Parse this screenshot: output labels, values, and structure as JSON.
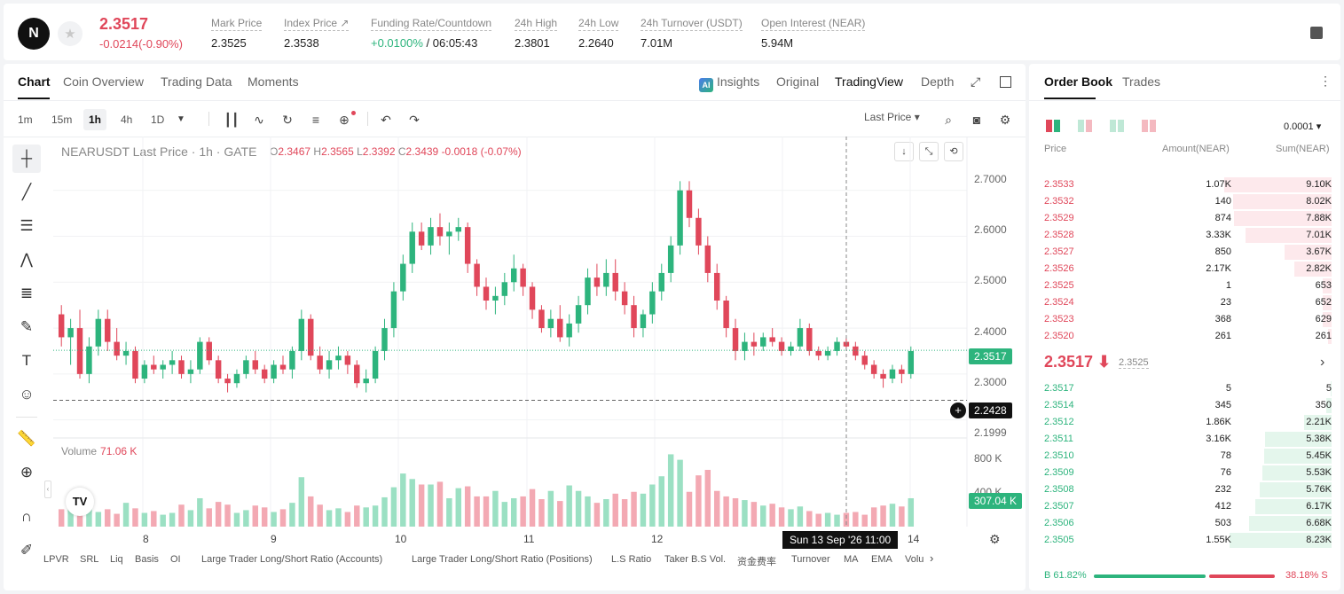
{
  "ticker": {
    "logo": "N",
    "last_price": "2.3517",
    "change": "-0.0214(-0.90%)",
    "stats": [
      {
        "label": "Mark Price",
        "value": "2.3525"
      },
      {
        "label": "Index Price ↗",
        "value": "2.3538"
      },
      {
        "label": "Funding Rate/Countdown",
        "value_green": "+0.0100%",
        "value": " / 06:05:43"
      },
      {
        "label": "24h High",
        "value": "2.3801"
      },
      {
        "label": "24h Low",
        "value": "2.2640"
      },
      {
        "label": "24h Turnover (USDT)",
        "value": "7.01M"
      },
      {
        "label": "Open Interest (NEAR)",
        "value": "5.94M"
      }
    ]
  },
  "chart_tabs": [
    "Chart",
    "Coin Overview",
    "Trading Data",
    "Moments"
  ],
  "view_tabs": {
    "insights": "Insights",
    "original": "Original",
    "tradingview": "TradingView",
    "depth": "Depth"
  },
  "timeframes": [
    "1m",
    "15m",
    "1h",
    "4h",
    "1D"
  ],
  "last_price_select": "Last Price ▾",
  "chart_header": {
    "title": "NEARUSDT Last Price · 1h · GATE",
    "o": "2.3467",
    "h": "2.3565",
    "l": "2.3392",
    "c": "2.3439",
    "chg": "-0.0018 (-0.07%)"
  },
  "price_axis": [
    "2.7000",
    "2.6000",
    "2.5000",
    "2.4000",
    "2.3000",
    "2.1999"
  ],
  "price_tags": {
    "last": "2.3517",
    "crosshair": "2.2428"
  },
  "volume": {
    "label": "Volume",
    "value": "71.06 K",
    "axis": [
      "800 K",
      "400 K"
    ],
    "tag": "307.04 K"
  },
  "x_axis": [
    "8",
    "9",
    "10",
    "11",
    "12",
    "14"
  ],
  "crosshair_time": "Sun 13 Sep '26   11:00",
  "indicators": [
    "LPVR",
    "SRL",
    "Liq",
    "Basis",
    "OI",
    "Large Trader Long/Short Ratio (Accounts)",
    "Large Trader Long/Short Ratio (Positions)",
    "L.S Ratio",
    "Taker B.S Vol.",
    "资金费率",
    "Turnover",
    "MA",
    "EMA",
    "Volu"
  ],
  "chart_data": {
    "type": "candlestick",
    "title": "NEARUSDT Last Price · 1h · GATE",
    "ylim": [
      2.18,
      2.74
    ],
    "ohlc": [
      [
        2.43,
        2.45,
        2.36,
        2.38
      ],
      [
        2.38,
        2.42,
        2.32,
        2.4
      ],
      [
        2.4,
        2.44,
        2.29,
        2.3
      ],
      [
        2.3,
        2.38,
        2.28,
        2.36
      ],
      [
        2.36,
        2.44,
        2.34,
        2.42
      ],
      [
        2.42,
        2.44,
        2.35,
        2.37
      ],
      [
        2.37,
        2.4,
        2.33,
        2.34
      ],
      [
        2.34,
        2.37,
        2.32,
        2.35
      ],
      [
        2.35,
        2.36,
        2.28,
        2.29
      ],
      [
        2.29,
        2.33,
        2.28,
        2.32
      ],
      [
        2.32,
        2.34,
        2.3,
        2.31
      ],
      [
        2.31,
        2.33,
        2.29,
        2.32
      ],
      [
        2.32,
        2.35,
        2.3,
        2.33
      ],
      [
        2.33,
        2.34,
        2.29,
        2.3
      ],
      [
        2.3,
        2.33,
        2.28,
        2.31
      ],
      [
        2.31,
        2.38,
        2.3,
        2.37
      ],
      [
        2.37,
        2.38,
        2.32,
        2.33
      ],
      [
        2.33,
        2.34,
        2.28,
        2.29
      ],
      [
        2.29,
        2.3,
        2.26,
        2.28
      ],
      [
        2.28,
        2.31,
        2.27,
        2.3
      ],
      [
        2.3,
        2.34,
        2.29,
        2.33
      ],
      [
        2.33,
        2.35,
        2.3,
        2.31
      ],
      [
        2.31,
        2.32,
        2.28,
        2.29
      ],
      [
        2.29,
        2.33,
        2.28,
        2.32
      ],
      [
        2.32,
        2.34,
        2.3,
        2.31
      ],
      [
        2.31,
        2.36,
        2.29,
        2.35
      ],
      [
        2.35,
        2.44,
        2.33,
        2.42
      ],
      [
        2.42,
        2.43,
        2.33,
        2.34
      ],
      [
        2.34,
        2.36,
        2.3,
        2.31
      ],
      [
        2.31,
        2.35,
        2.29,
        2.33
      ],
      [
        2.33,
        2.36,
        2.31,
        2.34
      ],
      [
        2.34,
        2.35,
        2.3,
        2.32
      ],
      [
        2.32,
        2.33,
        2.27,
        2.28
      ],
      [
        2.28,
        2.31,
        2.26,
        2.29
      ],
      [
        2.29,
        2.36,
        2.28,
        2.35
      ],
      [
        2.35,
        2.42,
        2.33,
        2.4
      ],
      [
        2.4,
        2.5,
        2.38,
        2.48
      ],
      [
        2.48,
        2.56,
        2.46,
        2.54
      ],
      [
        2.54,
        2.63,
        2.52,
        2.61
      ],
      [
        2.61,
        2.63,
        2.57,
        2.58
      ],
      [
        2.58,
        2.64,
        2.56,
        2.62
      ],
      [
        2.62,
        2.65,
        2.58,
        2.6
      ],
      [
        2.6,
        2.63,
        2.56,
        2.61
      ],
      [
        2.61,
        2.64,
        2.59,
        2.62
      ],
      [
        2.62,
        2.63,
        2.52,
        2.54
      ],
      [
        2.54,
        2.55,
        2.47,
        2.49
      ],
      [
        2.49,
        2.51,
        2.44,
        2.46
      ],
      [
        2.46,
        2.49,
        2.43,
        2.47
      ],
      [
        2.47,
        2.52,
        2.45,
        2.5
      ],
      [
        2.5,
        2.56,
        2.48,
        2.53
      ],
      [
        2.53,
        2.54,
        2.47,
        2.49
      ],
      [
        2.49,
        2.5,
        2.42,
        2.44
      ],
      [
        2.44,
        2.45,
        2.39,
        2.4
      ],
      [
        2.4,
        2.44,
        2.38,
        2.42
      ],
      [
        2.42,
        2.45,
        2.37,
        2.38
      ],
      [
        2.38,
        2.43,
        2.36,
        2.41
      ],
      [
        2.41,
        2.47,
        2.39,
        2.45
      ],
      [
        2.45,
        2.53,
        2.43,
        2.51
      ],
      [
        2.51,
        2.54,
        2.47,
        2.49
      ],
      [
        2.49,
        2.55,
        2.47,
        2.52
      ],
      [
        2.52,
        2.55,
        2.46,
        2.48
      ],
      [
        2.48,
        2.5,
        2.43,
        2.45
      ],
      [
        2.45,
        2.47,
        2.38,
        2.4
      ],
      [
        2.4,
        2.44,
        2.38,
        2.43
      ],
      [
        2.43,
        2.5,
        2.41,
        2.48
      ],
      [
        2.48,
        2.54,
        2.46,
        2.52
      ],
      [
        2.52,
        2.6,
        2.5,
        2.58
      ],
      [
        2.58,
        2.72,
        2.56,
        2.7
      ],
      [
        2.7,
        2.72,
        2.62,
        2.64
      ],
      [
        2.64,
        2.66,
        2.56,
        2.58
      ],
      [
        2.58,
        2.6,
        2.5,
        2.52
      ],
      [
        2.52,
        2.54,
        2.44,
        2.46
      ],
      [
        2.46,
        2.47,
        2.38,
        2.4
      ],
      [
        2.4,
        2.42,
        2.33,
        2.35
      ],
      [
        2.35,
        2.39,
        2.33,
        2.37
      ],
      [
        2.37,
        2.39,
        2.34,
        2.36
      ],
      [
        2.36,
        2.39,
        2.35,
        2.38
      ],
      [
        2.38,
        2.4,
        2.36,
        2.37
      ],
      [
        2.37,
        2.38,
        2.34,
        2.35
      ],
      [
        2.35,
        2.37,
        2.34,
        2.36
      ],
      [
        2.36,
        2.42,
        2.35,
        2.4
      ],
      [
        2.4,
        2.41,
        2.34,
        2.35
      ],
      [
        2.35,
        2.36,
        2.33,
        2.34
      ],
      [
        2.34,
        2.36,
        2.33,
        2.35
      ],
      [
        2.35,
        2.38,
        2.34,
        2.37
      ],
      [
        2.37,
        2.38,
        2.35,
        2.36
      ],
      [
        2.36,
        2.37,
        2.33,
        2.34
      ],
      [
        2.34,
        2.35,
        2.31,
        2.32
      ],
      [
        2.32,
        2.33,
        2.29,
        2.3
      ],
      [
        2.3,
        2.31,
        2.27,
        2.29
      ],
      [
        2.29,
        2.32,
        2.28,
        2.31
      ],
      [
        2.31,
        2.32,
        2.28,
        2.3
      ],
      [
        2.3,
        2.36,
        2.29,
        2.35
      ]
    ],
    "volume": [
      190,
      220,
      380,
      230,
      160,
      190,
      140,
      260,
      200,
      150,
      170,
      130,
      150,
      240,
      180,
      310,
      200,
      270,
      240,
      150,
      180,
      230,
      210,
      160,
      190,
      260,
      540,
      330,
      240,
      180,
      200,
      160,
      230,
      210,
      230,
      320,
      430,
      580,
      520,
      460,
      460,
      490,
      310,
      420,
      440,
      330,
      330,
      390,
      270,
      310,
      330,
      410,
      300,
      390,
      280,
      450,
      390,
      330,
      260,
      300,
      360,
      300,
      380,
      360,
      460,
      550,
      790,
      730,
      380,
      560,
      620,
      390,
      330,
      310,
      290,
      270,
      230,
      250,
      210,
      190,
      220,
      170,
      140,
      150,
      130,
      150,
      160,
      130,
      210,
      230,
      250,
      220,
      310
    ],
    "volume_ylim": [
      0,
      920
    ]
  },
  "order_book": {
    "tabs": [
      "Order Book",
      "Trades"
    ],
    "precision": "0.0001 ▾",
    "headers": [
      "Price",
      "Amount(NEAR)",
      "Sum(NEAR)"
    ],
    "asks": [
      {
        "p": "2.3533",
        "a": "1.07K",
        "s": "9.10K",
        "sum_frac": 0.87
      },
      {
        "p": "2.3532",
        "a": "140",
        "s": "8.02K",
        "sum_frac": 0.8
      },
      {
        "p": "2.3529",
        "a": "874",
        "s": "7.88K",
        "sum_frac": 0.79
      },
      {
        "p": "2.3528",
        "a": "3.33K",
        "s": "7.01K",
        "sum_frac": 0.7
      },
      {
        "p": "2.3527",
        "a": "850",
        "s": "3.67K",
        "sum_frac": 0.38
      },
      {
        "p": "2.3526",
        "a": "2.17K",
        "s": "2.82K",
        "sum_frac": 0.3
      },
      {
        "p": "2.3525",
        "a": "1",
        "s": "653",
        "sum_frac": 0.07
      },
      {
        "p": "2.3524",
        "a": "23",
        "s": "652",
        "sum_frac": 0.07
      },
      {
        "p": "2.3523",
        "a": "368",
        "s": "629",
        "sum_frac": 0.07
      },
      {
        "p": "2.3520",
        "a": "261",
        "s": "261",
        "sum_frac": 0.03
      }
    ],
    "mid": {
      "price": "2.3517 ⬇",
      "mark": "2.3525"
    },
    "bids": [
      {
        "p": "2.3517",
        "a": "5",
        "s": "5",
        "sum_frac": 0.01
      },
      {
        "p": "2.3514",
        "a": "345",
        "s": "350",
        "sum_frac": 0.04
      },
      {
        "p": "2.3512",
        "a": "1.86K",
        "s": "2.21K",
        "sum_frac": 0.22
      },
      {
        "p": "2.3511",
        "a": "3.16K",
        "s": "5.38K",
        "sum_frac": 0.54
      },
      {
        "p": "2.3510",
        "a": "78",
        "s": "5.45K",
        "sum_frac": 0.55
      },
      {
        "p": "2.3509",
        "a": "76",
        "s": "5.53K",
        "sum_frac": 0.56
      },
      {
        "p": "2.3508",
        "a": "232",
        "s": "5.76K",
        "sum_frac": 0.58
      },
      {
        "p": "2.3507",
        "a": "412",
        "s": "6.17K",
        "sum_frac": 0.62
      },
      {
        "p": "2.3506",
        "a": "503",
        "s": "6.68K",
        "sum_frac": 0.67
      },
      {
        "p": "2.3505",
        "a": "1.55K",
        "s": "8.23K",
        "sum_frac": 0.83
      }
    ],
    "buy_ratio": "B 61.82%",
    "sell_ratio": "38.18% S",
    "buy_frac": 0.6182
  },
  "colors": {
    "up": "#2db47d",
    "down": "#e0475a"
  }
}
